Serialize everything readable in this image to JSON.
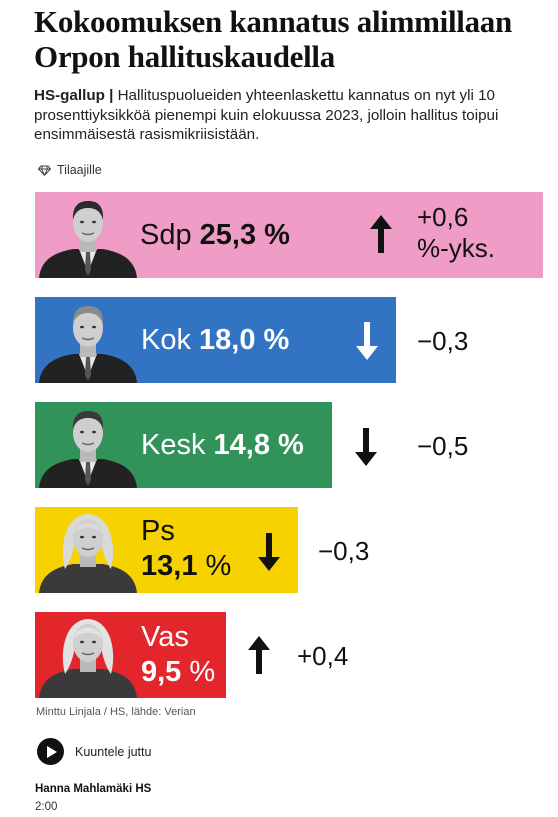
{
  "article": {
    "headline": "Kokoomuksen kannatus alimmillaan Orpon hallituskaudella",
    "kicker": "HS-gallup",
    "separator": "|",
    "lead": "Hallituspuolueiden yhteenlaskettu kannatus on nyt yli 10 prosenttiyksikköä pienempi kuin elokuussa 2023, jolloin hallitus toipui ensimmäisestä rasismikriisistään.",
    "subscribers_label": "Tilaajille",
    "image_credit": "Minttu Linjala / HS, lähde: Verian",
    "listen_label": "Kuuntele juttu",
    "author": "Hanna Mahlamäki HS",
    "duration": "2:00"
  },
  "chart_data": {
    "type": "bar",
    "categories": [
      "Sdp",
      "Kok",
      "Kesk",
      "Ps",
      "Vas"
    ],
    "values": [
      25.3,
      18.0,
      14.8,
      13.1,
      9.5
    ],
    "value_labels": [
      "25,3 %",
      "18,0 %",
      "14,8 %",
      "13,1 %",
      "9,5 %"
    ],
    "changes": [
      "+0,6 %-yks.",
      "−0,3",
      "−0,5",
      "−0,3",
      "+0,4"
    ],
    "directions": [
      "up",
      "down",
      "down",
      "down",
      "up"
    ],
    "colors": [
      "#ef9dc6",
      "#3373c4",
      "#31925a",
      "#f6d200",
      "#e3262b"
    ],
    "label_colors": [
      "#111111",
      "#ffffff",
      "#ffffff",
      "#111111",
      "#ffffff"
    ],
    "arrow_colors": [
      "#111111",
      "#ffffff",
      "#111111",
      "#111111",
      "#111111"
    ],
    "change_line1": [
      "+0,6",
      "−0,3",
      "−0,5",
      "−0,3",
      "+0,4"
    ],
    "change_line2": [
      "%-yks.",
      "",
      "",
      "",
      ""
    ]
  }
}
